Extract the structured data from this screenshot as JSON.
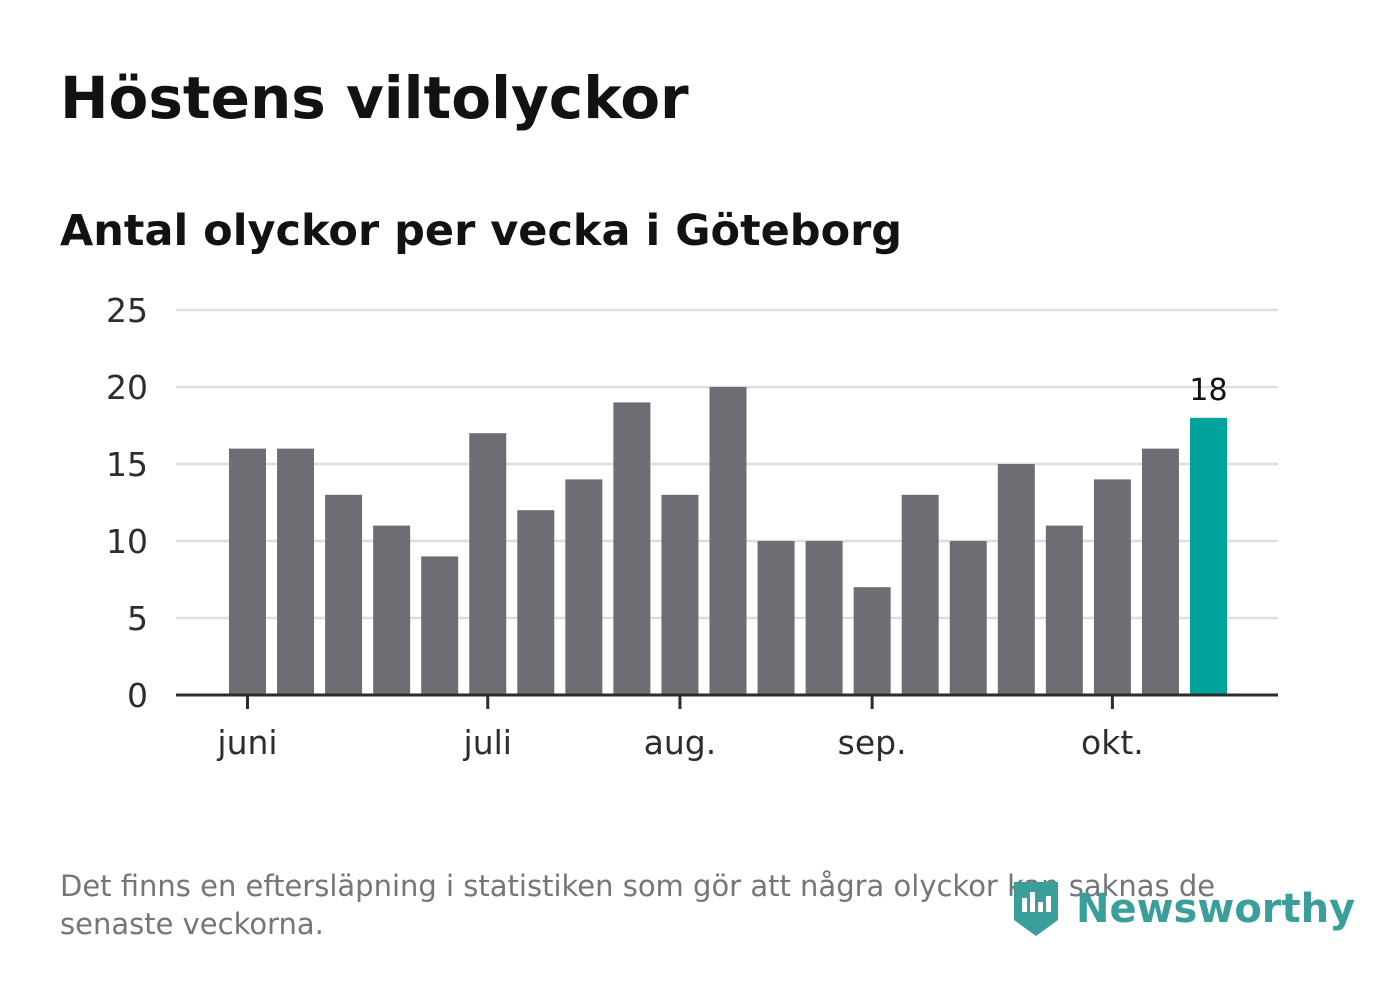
{
  "title": "Höstens viltolyckor",
  "subtitle": "Antal olyckor per vecka i Göteborg",
  "footnote": "Det finns en eftersläpning i statistiken som gör att några olyckor kan saknas de senaste veckorna.",
  "brand": {
    "name": "Newsworthy",
    "color": "#3a9e9a"
  },
  "colors": {
    "bar": "#6e6d73",
    "highlight": "#00a39a",
    "grid": "#dedede",
    "axis": "#2d2d2d",
    "text": "#121212",
    "tick_text": "#2d2d2d"
  },
  "chart_data": {
    "type": "bar",
    "title": "Höstens viltolyckor",
    "subtitle": "Antal olyckor per vecka i Göteborg",
    "xlabel": "",
    "ylabel": "",
    "ylim": [
      0,
      25
    ],
    "yticks": [
      0,
      5,
      10,
      15,
      20,
      25
    ],
    "grid": true,
    "values": [
      16,
      16,
      13,
      11,
      9,
      17,
      12,
      14,
      19,
      13,
      20,
      10,
      10,
      7,
      13,
      10,
      15,
      11,
      14,
      16,
      18
    ],
    "highlight_index": 20,
    "highlight_label": "18",
    "month_ticks": [
      {
        "label": "juni",
        "bar_index": 0
      },
      {
        "label": "juli",
        "bar_index": 5
      },
      {
        "label": "aug.",
        "bar_index": 9
      },
      {
        "label": "sep.",
        "bar_index": 13
      },
      {
        "label": "okt.",
        "bar_index": 18
      }
    ]
  }
}
